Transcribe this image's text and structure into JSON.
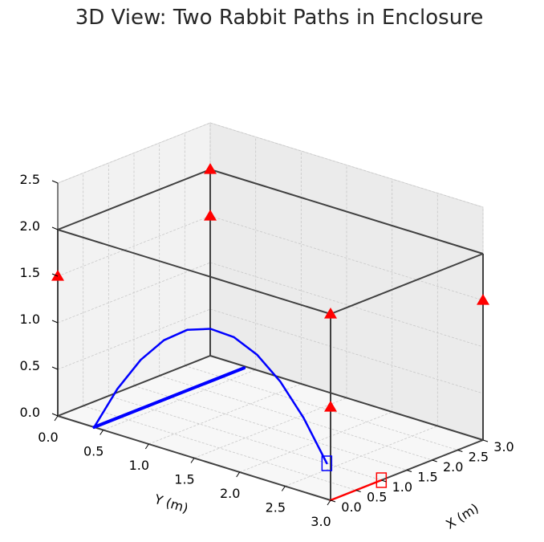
{
  "chart_data": {
    "type": "line3d",
    "title": "3D View: Two Rabbit Paths in Enclosure",
    "xlabel": "X (m)",
    "ylabel": "Y (m)",
    "zlabel": "",
    "xlim": [
      0,
      3.0
    ],
    "ylim": [
      0,
      3.0
    ],
    "zlim": [
      0,
      2.5
    ],
    "xticks": [
      "0.0",
      "0.5",
      "1.0",
      "1.5",
      "2.0",
      "2.5",
      "3.0"
    ],
    "yticks": [
      "0.0",
      "0.5",
      "1.0",
      "1.5",
      "2.0",
      "2.5",
      "3.0"
    ],
    "zticks": [
      "0.0",
      "0.5",
      "1.0",
      "1.5",
      "2.0",
      "2.5"
    ],
    "grid": true,
    "enclosure": {
      "x": [
        0,
        3.0
      ],
      "y": [
        0,
        3.0
      ],
      "z": [
        0,
        2.0
      ],
      "color": "#404040"
    },
    "series": [
      {
        "color": "#0000ff",
        "x": [
          0.0,
          0.1,
          0.2,
          0.3,
          0.4,
          0.5,
          0.6,
          0.7,
          0.8,
          0.9,
          1.0
        ],
        "y": [
          0.4,
          0.6,
          0.8,
          1.0,
          1.2,
          1.4,
          1.6,
          1.8,
          2.0,
          2.2,
          2.4
        ],
        "z": [
          0.0,
          0.45,
          0.8,
          1.05,
          1.2,
          1.25,
          1.2,
          1.05,
          0.8,
          0.45,
          0.0
        ],
        "end_marker": "square"
      },
      {
        "color": "#0000ff",
        "x": [
          0.0,
          2.95
        ],
        "y": [
          0.4,
          0.4
        ],
        "z": [
          0.0,
          0.0
        ],
        "end_marker": "none"
      },
      {
        "color": "#ff0000",
        "x": [
          0.0,
          0.1,
          0.2,
          0.3,
          0.4,
          0.5,
          0.6,
          0.7,
          0.8,
          0.9,
          1.0
        ],
        "y": [
          3.0,
          3.0,
          3.0,
          3.0,
          3.0,
          3.0,
          3.0,
          3.0,
          3.0,
          3.0,
          3.0
        ],
        "z": [
          0.0,
          0.0,
          0.0,
          0.0,
          0.0,
          0.0,
          0.0,
          0.0,
          0.0,
          0.0,
          0.0
        ],
        "end_marker": "square"
      }
    ],
    "markers": {
      "color": "#ff0000",
      "shape": "triangle-up",
      "points": [
        {
          "x": 0.0,
          "y": 0.0,
          "z": 1.5
        },
        {
          "x": 3.0,
          "y": 0.0,
          "z": 2.0
        },
        {
          "x": 3.0,
          "y": 0.0,
          "z": 1.5
        },
        {
          "x": 0.0,
          "y": 3.0,
          "z": 2.0
        },
        {
          "x": 0.0,
          "y": 3.0,
          "z": 1.0
        },
        {
          "x": 3.0,
          "y": 3.0,
          "z": 1.5
        }
      ]
    }
  }
}
